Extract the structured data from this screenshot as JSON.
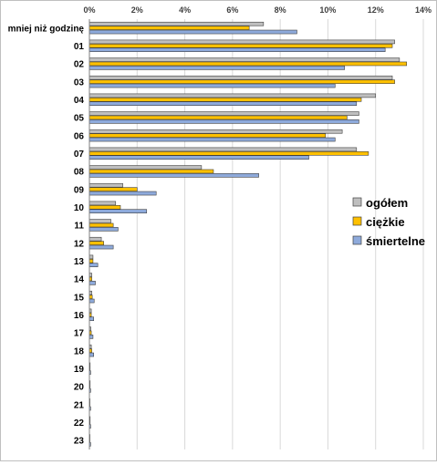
{
  "chart_data": {
    "type": "bar",
    "orientation": "horizontal",
    "title": "",
    "xlabel": "",
    "ylabel": "",
    "x_ticks": [
      "0%",
      "2%",
      "4%",
      "6%",
      "8%",
      "10%",
      "12%",
      "14%"
    ],
    "xlim": [
      0,
      14
    ],
    "x_axis_position": "top",
    "gridlines": true,
    "legend_position": "right",
    "categories": [
      "mniej niż godzinę",
      "01",
      "02",
      "03",
      "04",
      "05",
      "06",
      "07",
      "08",
      "09",
      "10",
      "11",
      "12",
      "13",
      "14",
      "15",
      "16",
      "17",
      "18",
      "19",
      "20",
      "21",
      "22",
      "23"
    ],
    "series": [
      {
        "name": "ogółem",
        "color": "#bfbfbf",
        "values": [
          7.3,
          12.8,
          13.0,
          12.7,
          12.0,
          11.3,
          10.6,
          11.2,
          4.7,
          1.4,
          1.1,
          0.9,
          0.5,
          0.15,
          0.1,
          0.1,
          0.08,
          0.06,
          0.08,
          0.03,
          0.03,
          0.02,
          0.03,
          0.02
        ]
      },
      {
        "name": "ciężkie",
        "color": "#ffc000",
        "values": [
          6.7,
          12.7,
          13.3,
          12.8,
          11.4,
          10.8,
          9.9,
          11.7,
          5.2,
          2.0,
          1.3,
          1.0,
          0.6,
          0.15,
          0.1,
          0.12,
          0.08,
          0.08,
          0.1,
          0.03,
          0.03,
          0.02,
          0.03,
          0.02
        ]
      },
      {
        "name": "śmiertelne",
        "color": "#8eaadb",
        "values": [
          8.7,
          12.4,
          10.7,
          10.3,
          11.2,
          11.3,
          10.3,
          9.2,
          7.1,
          2.8,
          2.4,
          1.2,
          1.0,
          0.35,
          0.25,
          0.2,
          0.18,
          0.15,
          0.18,
          0.05,
          0.05,
          0.05,
          0.05,
          0.05
        ]
      }
    ]
  }
}
